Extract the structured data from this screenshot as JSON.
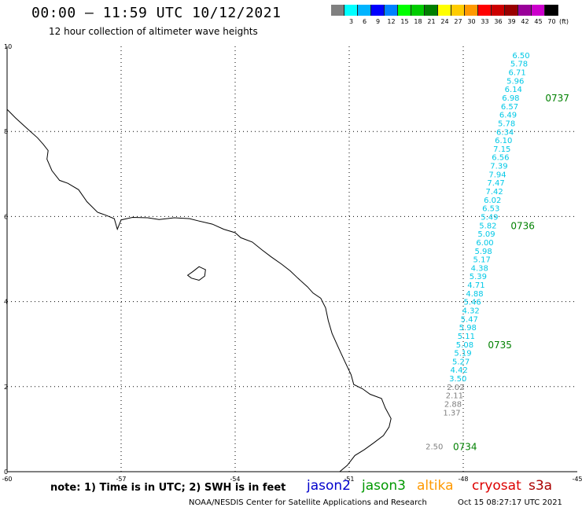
{
  "header": {
    "title": "00:00 – 11:59 UTC 10/12/2021",
    "subtitle": "12 hour collection of altimeter wave heights"
  },
  "colorscale": {
    "bins": [
      {
        "color": "#808080",
        "label": ""
      },
      {
        "color": "#00ffff",
        "label": "3"
      },
      {
        "color": "#00b4ff",
        "label": "6"
      },
      {
        "color": "#0000ff",
        "label": "9"
      },
      {
        "color": "#0082ff",
        "label": "12"
      },
      {
        "color": "#00ff00",
        "label": "15"
      },
      {
        "color": "#00cc00",
        "label": "18"
      },
      {
        "color": "#008000",
        "label": "21"
      },
      {
        "color": "#ffff00",
        "label": "24"
      },
      {
        "color": "#ffcc00",
        "label": "27"
      },
      {
        "color": "#ff9900",
        "label": "30"
      },
      {
        "color": "#ff0000",
        "label": "33"
      },
      {
        "color": "#cc0000",
        "label": "36"
      },
      {
        "color": "#990000",
        "label": "39"
      },
      {
        "color": "#990099",
        "label": "42"
      },
      {
        "color": "#cc00cc",
        "label": "45"
      },
      {
        "color": "#000000",
        "label": "70"
      }
    ],
    "unit": "(ft)"
  },
  "map": {
    "lon_range": [
      -60,
      -45
    ],
    "lat_range": [
      0,
      10
    ],
    "x_ticks": [
      "-60",
      "-57",
      "-54",
      "-51",
      "-48",
      "-45"
    ],
    "x_tick_values": [
      -60,
      -57,
      -54,
      -51,
      -48,
      -45
    ],
    "y_ticks": [
      "0",
      "2",
      "4",
      "6",
      "8",
      "10"
    ],
    "y_tick_values": [
      0,
      2,
      4,
      6,
      8,
      10
    ],
    "grid": "dotted",
    "cyan_color": "#00c8e6",
    "gray_color": "#808080",
    "time_color": "#008000",
    "track": [
      {
        "lon": -46.48,
        "lat": 9.78,
        "swh": "6.50",
        "band": "cyan"
      },
      {
        "lon": -46.53,
        "lat": 9.58,
        "swh": "5.78",
        "band": "cyan"
      },
      {
        "lon": -46.58,
        "lat": 9.38,
        "swh": "6.71",
        "band": "cyan"
      },
      {
        "lon": -46.63,
        "lat": 9.18,
        "swh": "5.96",
        "band": "cyan"
      },
      {
        "lon": -46.68,
        "lat": 8.98,
        "swh": "6.14",
        "band": "cyan"
      },
      {
        "lon": -46.75,
        "lat": 8.78,
        "swh": "6.98",
        "band": "cyan"
      },
      {
        "lon": -46.78,
        "lat": 8.58,
        "swh": "6.57",
        "band": "cyan"
      },
      {
        "lon": -46.82,
        "lat": 8.38,
        "swh": "6.49",
        "band": "cyan"
      },
      {
        "lon": -46.86,
        "lat": 8.18,
        "swh": "5.78",
        "band": "cyan"
      },
      {
        "lon": -46.9,
        "lat": 7.98,
        "swh": "6.34",
        "band": "cyan"
      },
      {
        "lon": -46.94,
        "lat": 7.78,
        "swh": "6.10",
        "band": "cyan"
      },
      {
        "lon": -46.98,
        "lat": 7.58,
        "swh": "7.15",
        "band": "cyan"
      },
      {
        "lon": -47.02,
        "lat": 7.38,
        "swh": "6.56",
        "band": "cyan"
      },
      {
        "lon": -47.06,
        "lat": 7.18,
        "swh": "7.39",
        "band": "cyan"
      },
      {
        "lon": -47.1,
        "lat": 6.98,
        "swh": "7.94",
        "band": "cyan"
      },
      {
        "lon": -47.14,
        "lat": 6.78,
        "swh": "7.47",
        "band": "cyan"
      },
      {
        "lon": -47.18,
        "lat": 6.58,
        "swh": "7.42",
        "band": "cyan"
      },
      {
        "lon": -47.23,
        "lat": 6.38,
        "swh": "6.02",
        "band": "cyan"
      },
      {
        "lon": -47.27,
        "lat": 6.18,
        "swh": "6.53",
        "band": "cyan"
      },
      {
        "lon": -47.31,
        "lat": 5.98,
        "swh": "5.49",
        "band": "cyan"
      },
      {
        "lon": -47.35,
        "lat": 5.78,
        "swh": "5.82",
        "band": "cyan"
      },
      {
        "lon": -47.39,
        "lat": 5.58,
        "swh": "5.09",
        "band": "cyan"
      },
      {
        "lon": -47.43,
        "lat": 5.38,
        "swh": "6.00",
        "band": "cyan"
      },
      {
        "lon": -47.47,
        "lat": 5.18,
        "swh": "5.98",
        "band": "cyan"
      },
      {
        "lon": -47.51,
        "lat": 4.98,
        "swh": "5.17",
        "band": "cyan"
      },
      {
        "lon": -47.57,
        "lat": 4.78,
        "swh": "4.38",
        "band": "cyan"
      },
      {
        "lon": -47.61,
        "lat": 4.58,
        "swh": "5.39",
        "band": "cyan"
      },
      {
        "lon": -47.66,
        "lat": 4.38,
        "swh": "4.71",
        "band": "cyan"
      },
      {
        "lon": -47.7,
        "lat": 4.18,
        "swh": "4.88",
        "band": "cyan"
      },
      {
        "lon": -47.76,
        "lat": 3.98,
        "swh": "5.46",
        "band": "cyan"
      },
      {
        "lon": -47.8,
        "lat": 3.78,
        "swh": "4.32",
        "band": "cyan"
      },
      {
        "lon": -47.84,
        "lat": 3.58,
        "swh": "5.47",
        "band": "cyan"
      },
      {
        "lon": -47.88,
        "lat": 3.38,
        "swh": "5.98",
        "band": "cyan"
      },
      {
        "lon": -47.92,
        "lat": 3.18,
        "swh": "5.11",
        "band": "cyan"
      },
      {
        "lon": -47.96,
        "lat": 2.98,
        "swh": "5.08",
        "band": "cyan"
      },
      {
        "lon": -48.01,
        "lat": 2.78,
        "swh": "5.19",
        "band": "cyan"
      },
      {
        "lon": -48.06,
        "lat": 2.58,
        "swh": "5.27",
        "band": "cyan"
      },
      {
        "lon": -48.11,
        "lat": 2.38,
        "swh": "4.42",
        "band": "cyan"
      },
      {
        "lon": -48.14,
        "lat": 2.18,
        "swh": "3.50",
        "band": "cyan"
      },
      {
        "lon": -48.2,
        "lat": 1.98,
        "swh": "2.02",
        "band": "gray"
      },
      {
        "lon": -48.23,
        "lat": 1.78,
        "swh": "2.11",
        "band": "gray"
      },
      {
        "lon": -48.27,
        "lat": 1.58,
        "swh": "2.88",
        "band": "gray"
      },
      {
        "lon": -48.3,
        "lat": 1.38,
        "swh": "1.37",
        "band": "gray"
      },
      {
        "lon": -48.76,
        "lat": 0.58,
        "swh": "2.50",
        "band": "gray"
      }
    ],
    "times": [
      {
        "lon": -45.84,
        "lat": 8.78,
        "label": "0737"
      },
      {
        "lon": -46.75,
        "lat": 5.78,
        "label": "0736"
      },
      {
        "lon": -47.35,
        "lat": 2.98,
        "label": "0735"
      },
      {
        "lon": -48.27,
        "lat": 0.58,
        "label": "0734"
      }
    ],
    "coastline": [
      [
        -60.0,
        8.52
      ],
      [
        -59.78,
        8.32
      ],
      [
        -59.45,
        8.05
      ],
      [
        -59.2,
        7.85
      ],
      [
        -59.05,
        7.7
      ],
      [
        -58.92,
        7.55
      ],
      [
        -58.95,
        7.35
      ],
      [
        -58.82,
        7.08
      ],
      [
        -58.62,
        6.85
      ],
      [
        -58.4,
        6.78
      ],
      [
        -58.12,
        6.63
      ],
      [
        -57.9,
        6.35
      ],
      [
        -57.62,
        6.1
      ],
      [
        -57.4,
        6.03
      ],
      [
        -57.18,
        5.95
      ],
      [
        -57.1,
        5.7
      ],
      [
        -57.0,
        5.92
      ],
      [
        -56.7,
        5.98
      ],
      [
        -56.3,
        5.97
      ],
      [
        -56.0,
        5.93
      ],
      [
        -55.6,
        5.97
      ],
      [
        -55.2,
        5.95
      ],
      [
        -54.98,
        5.9
      ],
      [
        -54.6,
        5.82
      ],
      [
        -54.3,
        5.7
      ],
      [
        -54.0,
        5.62
      ],
      [
        -53.85,
        5.5
      ],
      [
        -53.55,
        5.4
      ],
      [
        -53.3,
        5.22
      ],
      [
        -53.05,
        5.05
      ],
      [
        -52.78,
        4.88
      ],
      [
        -52.55,
        4.72
      ],
      [
        -52.35,
        4.55
      ],
      [
        -52.1,
        4.35
      ],
      [
        -51.95,
        4.2
      ],
      [
        -51.75,
        4.08
      ],
      [
        -51.62,
        3.85
      ],
      [
        -51.55,
        3.55
      ],
      [
        -51.45,
        3.25
      ],
      [
        -51.3,
        2.95
      ],
      [
        -51.12,
        2.6
      ],
      [
        -50.95,
        2.28
      ],
      [
        -50.88,
        2.05
      ],
      [
        -50.65,
        1.95
      ],
      [
        -50.45,
        1.82
      ],
      [
        -50.15,
        1.72
      ],
      [
        -50.05,
        1.5
      ],
      [
        -49.9,
        1.25
      ],
      [
        -49.95,
        1.05
      ],
      [
        -50.1,
        0.85
      ],
      [
        -50.35,
        0.68
      ],
      [
        -50.6,
        0.52
      ],
      [
        -50.85,
        0.38
      ],
      [
        -51.05,
        0.15
      ],
      [
        -51.25,
        0.0
      ]
    ],
    "island": [
      [
        -55.12,
        4.7
      ],
      [
        -54.95,
        4.82
      ],
      [
        -54.78,
        4.75
      ],
      [
        -54.8,
        4.6
      ],
      [
        -54.95,
        4.5
      ],
      [
        -55.15,
        4.55
      ],
      [
        -55.25,
        4.62
      ],
      [
        -55.12,
        4.7
      ]
    ]
  },
  "footer": {
    "note": "note: 1) Time is in UTC; 2) SWH is in feet",
    "satellites": [
      {
        "name": "jason2",
        "color": "#0000cc"
      },
      {
        "name": "jason3",
        "color": "#009900"
      },
      {
        "name": "altika",
        "color": "#ff9900"
      },
      {
        "name": "cryosat",
        "color": "#dd0000"
      },
      {
        "name": "s3a",
        "color": "#aa0000"
      }
    ],
    "credit": "NOAA/NESDIS Center for Satellite Applications and Research",
    "timestamp": "Oct 15 08:27:17 UTC 2021"
  }
}
